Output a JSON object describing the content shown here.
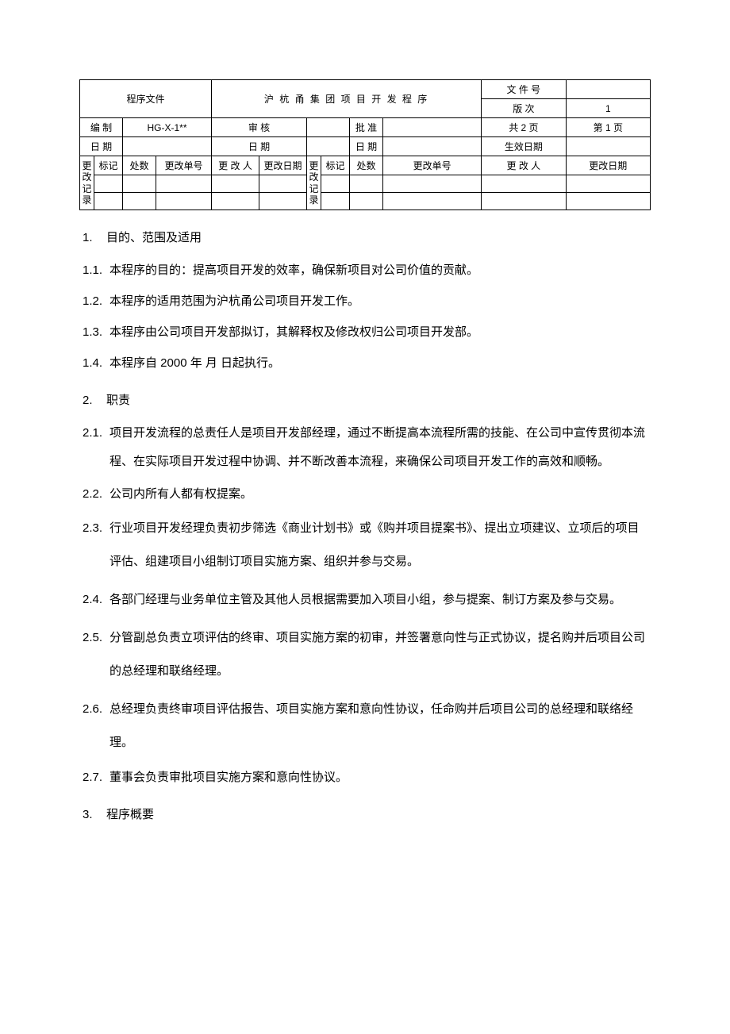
{
  "header": {
    "doc_type": "程序文件",
    "title": "沪 杭 甬 集 团 项 目 开 发  程 序",
    "doc_no_label": "文 件 号",
    "doc_no": "",
    "version_label": "版    次",
    "version": "1",
    "author_label": "编  制",
    "author": "HG-X-1**",
    "review_label": "审  核",
    "review": "",
    "approve_label": "批  准",
    "approve": "",
    "total_pages_label": "共 2  页",
    "page_label": "第 1  页",
    "date_label": "日  期",
    "date1": "",
    "date2": "",
    "date3": "",
    "effective_label": "生效日期",
    "effective": ""
  },
  "changes": {
    "vlabel": "更改记录",
    "mark": "标记",
    "count": "处数",
    "order": "更改单号",
    "person": "更 改 人",
    "date": "更改日期"
  },
  "sections": {
    "s1": {
      "num": "1.",
      "title": "目的、范围及适用"
    },
    "s1_1": {
      "num": "1.1.",
      "text": "本程序的目的：提高项目开发的效率，确保新项目对公司价值的贡献。"
    },
    "s1_2": {
      "num": "1.2.",
      "text": "本程序的适用范围为沪杭甬公司项目开发工作。"
    },
    "s1_3": {
      "num": "1.3.",
      "text": "本程序由公司项目开发部拟订，其解释权及修改权归公司项目开发部。"
    },
    "s1_4": {
      "num": "1.4.",
      "text": "本程序自  2000 年  月  日起执行。"
    },
    "s2": {
      "num": "2.",
      "title": "职责"
    },
    "s2_1": {
      "num": "2.1.",
      "text": "项目开发流程的总责任人是项目开发部经理，通过不断提高本流程所需的技能、在公司中宣传贯彻本流程、在实际项目开发过程中协调、并不断改善本流程，来确保公司项目开发工作的高效和顺畅。"
    },
    "s2_2": {
      "num": "2.2.",
      "text": "公司内所有人都有权提案。"
    },
    "s2_3": {
      "num": "2.3.",
      "text": "行业项目开发经理负责初步筛选《商业计划书》或《购并项目提案书》、提出立项建议、立项后的项目评估、组建项目小组制订项目实施方案、组织并参与交易。"
    },
    "s2_4": {
      "num": "2.4.",
      "text": "各部门经理与业务单位主管及其他人员根据需要加入项目小组，参与提案、制订方案及参与交易。"
    },
    "s2_5": {
      "num": "2.5.",
      "text": "分管副总负责立项评估的终审、项目实施方案的初审，并签署意向性与正式协议，提名购并后项目公司的总经理和联络经理。"
    },
    "s2_6": {
      "num": "2.6.",
      "text": "总经理负责终审项目评估报告、项目实施方案和意向性协议，任命购并后项目公司的总经理和联络经理。"
    },
    "s2_7": {
      "num": "2.7.",
      "text": "董事会负责审批项目实施方案和意向性协议。"
    },
    "s3": {
      "num": "3.",
      "title": "程序概要"
    }
  }
}
